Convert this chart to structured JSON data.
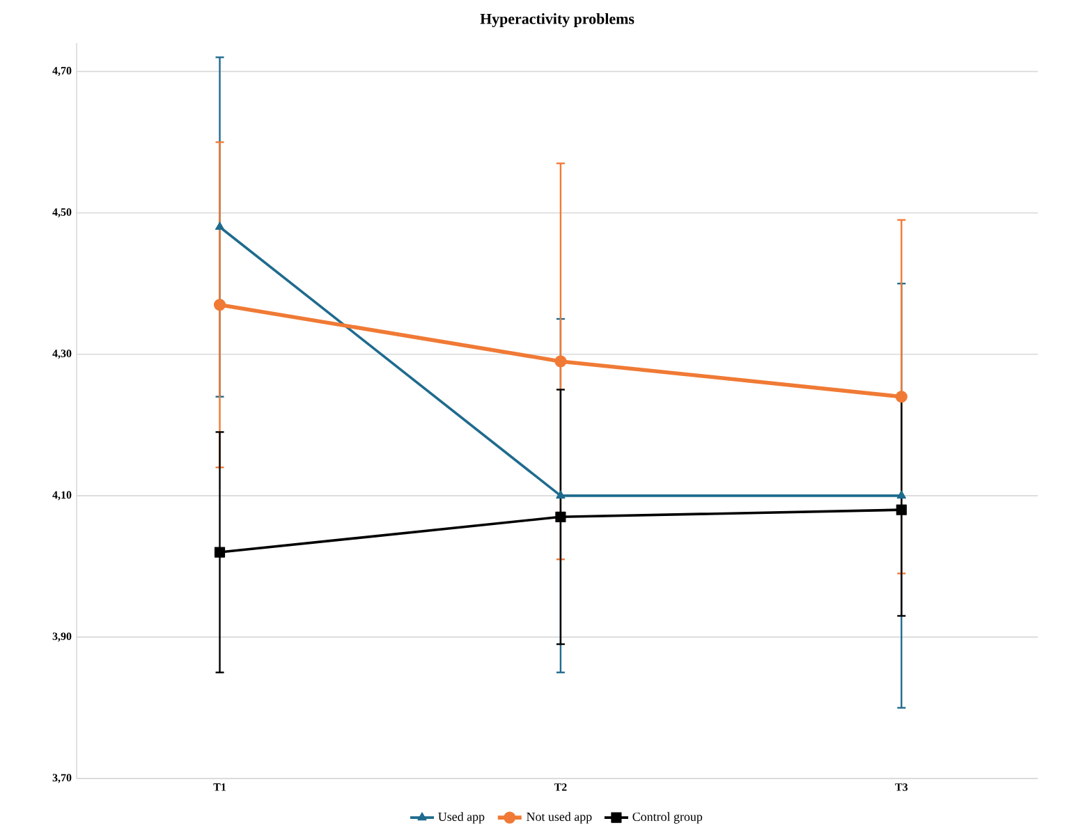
{
  "chart_data": {
    "type": "line",
    "title": "Hyperactivity problems",
    "categories": [
      "T1",
      "T2",
      "T3"
    ],
    "series": [
      {
        "name": "Used app",
        "color": "#1f6b8e",
        "marker": "triangle",
        "values": [
          4.48,
          4.1,
          4.1
        ],
        "errors": [
          [
            4.24,
            4.72
          ],
          [
            3.85,
            4.35
          ],
          [
            3.8,
            4.4
          ]
        ]
      },
      {
        "name": "Not used app",
        "color": "#f07a35",
        "marker": "circle",
        "values": [
          4.37,
          4.29,
          4.24
        ],
        "errors": [
          [
            4.14,
            4.6
          ],
          [
            4.01,
            4.57
          ],
          [
            3.99,
            4.49
          ]
        ]
      },
      {
        "name": "Control group",
        "color": "#000000",
        "marker": "square",
        "values": [
          4.02,
          4.07,
          4.08
        ],
        "errors": [
          [
            3.85,
            4.19
          ],
          [
            3.89,
            4.25
          ],
          [
            3.93,
            4.24
          ]
        ]
      }
    ],
    "ylim": [
      3.7,
      4.74
    ],
    "yticks": [
      {
        "value": 3.7,
        "label": "3,70"
      },
      {
        "value": 3.9,
        "label": "3,90"
      },
      {
        "value": 4.1,
        "label": "4,10"
      },
      {
        "value": 4.3,
        "label": "4,30"
      },
      {
        "value": 4.5,
        "label": "4,50"
      },
      {
        "value": 4.7,
        "label": "4,70"
      }
    ],
    "grid": "y",
    "legend": "bottom",
    "line_style": "solid"
  }
}
